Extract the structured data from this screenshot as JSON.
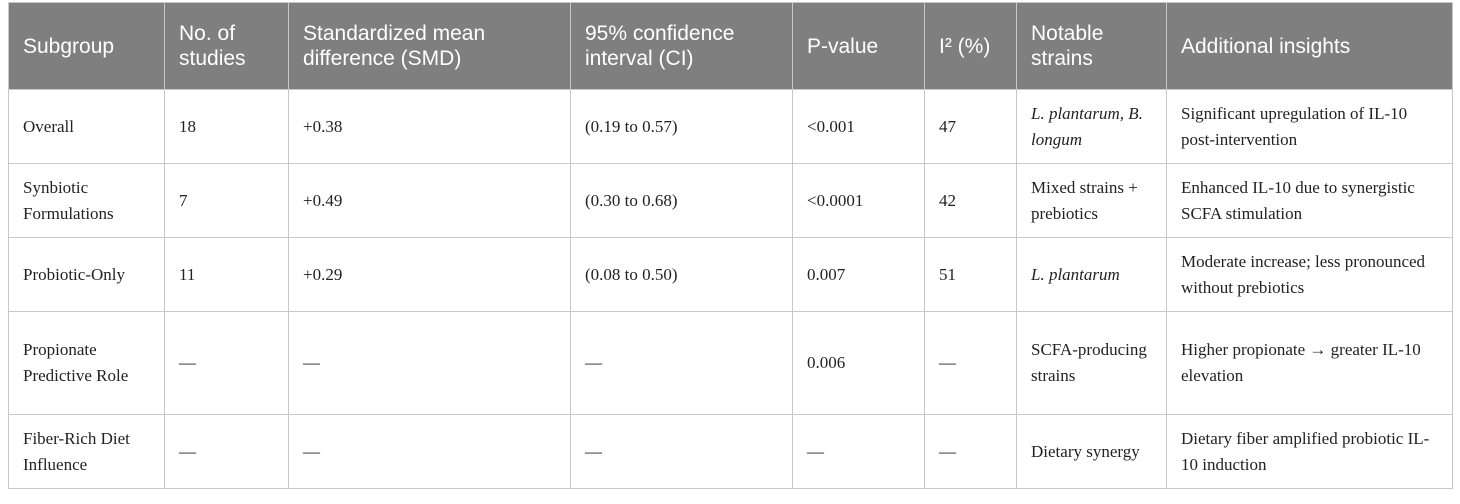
{
  "table": {
    "header": [
      "Subgroup",
      "No. of studies",
      "Standardized mean difference (SMD)",
      "95% confidence interval (CI)",
      "P-value",
      "I² (%)",
      "Notable strains",
      "Additional insights"
    ],
    "rows": [
      [
        "Overall",
        "18",
        "+0.38",
        "(0.19 to 0.57)",
        "<0.001",
        "47",
        "L. plantarum, B. longum",
        "Significant upregulation of IL-10 post-intervention"
      ],
      [
        "Synbiotic Formulations",
        "7",
        "+0.49",
        "(0.30 to 0.68)",
        "<0.0001",
        "42",
        "Mixed strains + prebiotics",
        "Enhanced IL-10 due to synergistic SCFA stimulation"
      ],
      [
        "Probiotic-Only",
        "11",
        "+0.29",
        "(0.08 to 0.50)",
        "0.007",
        "51",
        "L. plantarum",
        "Moderate increase; less pronounced without prebiotics"
      ],
      [
        "Propionate Predictive Role",
        "—",
        "—",
        "—",
        "0.006",
        "—",
        "SCFA-producing strains",
        "Higher propionate → greater IL-10 elevation"
      ],
      [
        "Fiber-Rich Diet Influence",
        "—",
        "—",
        "—",
        "—",
        "—",
        "Dietary synergy",
        "Dietary fiber amplified probiotic IL-10 induction"
      ]
    ]
  }
}
